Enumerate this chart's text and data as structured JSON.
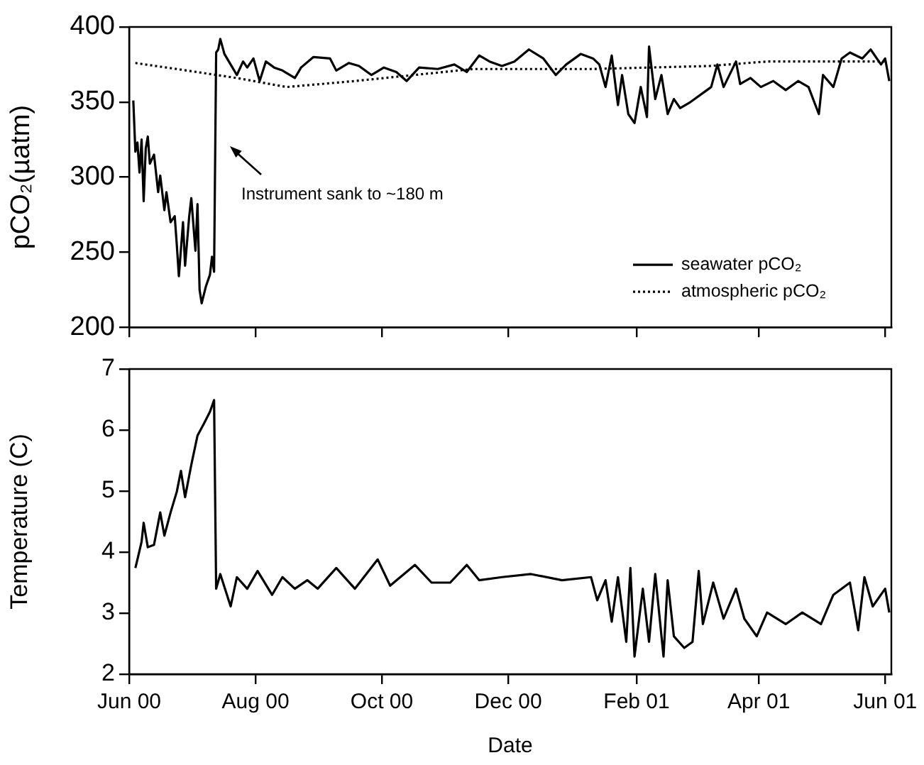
{
  "chart_data": [
    {
      "type": "line",
      "ylabel": "pCO₂(µatm)",
      "xlim": [
        "2000-06-01",
        "2001-06-04"
      ],
      "ylim": [
        200,
        400
      ],
      "yticks": [
        200,
        250,
        300,
        350,
        400
      ],
      "xticks": [
        {
          "value": "2000-06-01",
          "label": null
        },
        {
          "value": "2000-08-01",
          "label": null
        },
        {
          "value": "2000-10-01",
          "label": null
        },
        {
          "value": "2000-12-01",
          "label": null
        },
        {
          "value": "2001-02-01",
          "label": null
        },
        {
          "value": "2001-04-01",
          "label": null
        },
        {
          "value": "2001-06-01",
          "label": null
        }
      ],
      "tick_labels": "y",
      "legend": "bottom right",
      "marker": "none",
      "annotations": [
        "Instrument sank to ~180 m"
      ],
      "series": [
        {
          "name": "seawater pCO₂",
          "color": "#000000",
          "line_style": "solid",
          "x": [
            "2000-06-03",
            "2000-06-04",
            "2000-06-05",
            "2000-06-06",
            "2000-06-07",
            "2000-06-08",
            "2000-06-09",
            "2000-06-10",
            "2000-06-11",
            "2000-06-13",
            "2000-06-15",
            "2000-06-16",
            "2000-06-18",
            "2000-06-19",
            "2000-06-21",
            "2000-06-23",
            "2000-06-24",
            "2000-06-25",
            "2000-06-27",
            "2000-06-28",
            "2000-06-30",
            "2000-07-01",
            "2000-07-03",
            "2000-07-04",
            "2000-07-05",
            "2000-07-06",
            "2000-07-08",
            "2000-07-10",
            "2000-07-11",
            "2000-07-12",
            "2000-07-13",
            "2000-07-14",
            "2000-07-15",
            "2000-07-17",
            "2000-07-20",
            "2000-07-23",
            "2000-07-26",
            "2000-07-28",
            "2000-07-31",
            "2000-08-03",
            "2000-08-06",
            "2000-08-10",
            "2000-08-14",
            "2000-08-20",
            "2000-08-23",
            "2000-08-29",
            "2000-09-06",
            "2000-09-09",
            "2000-09-15",
            "2000-09-20",
            "2000-09-26",
            "2000-10-02",
            "2000-10-08",
            "2000-10-13",
            "2000-10-19",
            "2000-10-28",
            "2000-11-05",
            "2000-11-11",
            "2000-11-17",
            "2000-11-22",
            "2000-11-28",
            "2000-12-04",
            "2000-12-11",
            "2000-12-18",
            "2000-12-24",
            "2000-12-29",
            "2001-01-05",
            "2001-01-11",
            "2001-01-14",
            "2001-01-17",
            "2001-01-20",
            "2001-01-23",
            "2001-01-25",
            "2001-01-28",
            "2001-01-31",
            "2001-02-03",
            "2001-02-06",
            "2001-02-07",
            "2001-02-10",
            "2001-02-13",
            "2001-02-16",
            "2001-02-19",
            "2001-02-22",
            "2001-02-27",
            "2001-03-05",
            "2001-03-09",
            "2001-03-12",
            "2001-03-15",
            "2001-03-21",
            "2001-03-23",
            "2001-03-28",
            "2001-04-02",
            "2001-04-08",
            "2001-04-14",
            "2001-04-20",
            "2001-04-25",
            "2001-04-30",
            "2001-05-02",
            "2001-05-07",
            "2001-05-11",
            "2001-05-15",
            "2001-05-21",
            "2001-05-25",
            "2001-05-30",
            "2001-06-01",
            "2001-06-03"
          ],
          "values": [
            351,
            317,
            323,
            303,
            325,
            284,
            319,
            327,
            309,
            315,
            290,
            301,
            278,
            290,
            270,
            274,
            255,
            234,
            270,
            241,
            274,
            286,
            251,
            282,
            225,
            216,
            227,
            235,
            247,
            237,
            383,
            385,
            392,
            382,
            375,
            368,
            377,
            373,
            379,
            364,
            377,
            373,
            371,
            366,
            373,
            380,
            379,
            371,
            376,
            374,
            368,
            373,
            370,
            364,
            373,
            372,
            375,
            370,
            381,
            377,
            374,
            377,
            385,
            379,
            368,
            375,
            382,
            379,
            375,
            360,
            381,
            348,
            368,
            342,
            336,
            360,
            340,
            387,
            352,
            368,
            342,
            352,
            346,
            350,
            356,
            360,
            375,
            360,
            377,
            362,
            366,
            360,
            364,
            358,
            364,
            360,
            342,
            368,
            360,
            379,
            383,
            379,
            385,
            375,
            379,
            364
          ]
        },
        {
          "name": "atmospheric pCO₂",
          "color": "#000000",
          "line_style": "dotted",
          "x": [
            "2000-06-04",
            "2000-06-24",
            "2000-07-23",
            "2000-08-16",
            "2000-09-18",
            "2000-11-14",
            "2001-01-10",
            "2001-03-08",
            "2001-04-05",
            "2001-06-01"
          ],
          "values": [
            376,
            372,
            366,
            360,
            364,
            372,
            372,
            374,
            377,
            377
          ]
        }
      ]
    },
    {
      "type": "line",
      "xlabel": "Date",
      "ylabel": "Temperature (C)",
      "xlim": [
        "2000-06-01",
        "2001-06-04"
      ],
      "ylim": [
        2,
        7
      ],
      "yticks": [
        2,
        3,
        4,
        5,
        6,
        7
      ],
      "xticks": [
        {
          "value": "2000-06-01",
          "label": "Jun 00"
        },
        {
          "value": "2000-08-01",
          "label": "Aug 00"
        },
        {
          "value": "2000-10-01",
          "label": "Oct 00"
        },
        {
          "value": "2000-12-01",
          "label": "Dec 00"
        },
        {
          "value": "2001-02-01",
          "label": "Feb 01"
        },
        {
          "value": "2001-04-01",
          "label": "Apr 01"
        },
        {
          "value": "2001-06-01",
          "label": "Jun 01"
        }
      ],
      "marker": "none",
      "series": [
        {
          "color": "#000000",
          "line_style": "solid",
          "x": [
            "2000-06-04",
            "2000-06-05",
            "2000-06-07",
            "2000-06-08",
            "2000-06-10",
            "2000-06-13",
            "2000-06-16",
            "2000-06-18",
            "2000-06-21",
            "2000-06-24",
            "2000-06-26",
            "2000-06-28",
            "2000-07-01",
            "2000-07-04",
            "2000-07-07",
            "2000-07-10",
            "2000-07-12",
            "2000-07-13",
            "2000-07-15",
            "2000-07-20",
            "2000-07-23",
            "2000-07-28",
            "2000-08-02",
            "2000-08-09",
            "2000-08-14",
            "2000-08-20",
            "2000-08-26",
            "2000-08-31",
            "2000-09-09",
            "2000-09-18",
            "2000-09-29",
            "2000-10-05",
            "2000-10-17",
            "2000-10-25",
            "2000-11-03",
            "2000-11-11",
            "2000-11-17",
            "2000-11-28",
            "2000-12-12",
            "2000-12-27",
            "2001-01-10",
            "2001-01-13",
            "2001-01-17",
            "2001-01-20",
            "2001-01-23",
            "2001-01-27",
            "2001-01-29",
            "2001-01-31",
            "2001-02-04",
            "2001-02-07",
            "2001-02-10",
            "2001-02-14",
            "2001-02-16",
            "2001-02-19",
            "2001-02-24",
            "2001-02-28",
            "2001-03-03",
            "2001-03-05",
            "2001-03-10",
            "2001-03-15",
            "2001-03-21",
            "2001-03-25",
            "2001-03-31",
            "2001-04-05",
            "2001-04-14",
            "2001-04-22",
            "2001-05-01",
            "2001-05-07",
            "2001-05-15",
            "2001-05-19",
            "2001-05-22",
            "2001-05-26",
            "2001-06-01",
            "2001-06-03"
          ],
          "values": [
            3.74,
            3.88,
            4.17,
            4.48,
            4.08,
            4.12,
            4.65,
            4.27,
            4.65,
            4.99,
            5.33,
            4.9,
            5.43,
            5.91,
            6.1,
            6.3,
            6.49,
            3.4,
            3.64,
            3.11,
            3.59,
            3.4,
            3.69,
            3.3,
            3.59,
            3.4,
            3.54,
            3.4,
            3.74,
            3.4,
            3.88,
            3.45,
            3.79,
            3.5,
            3.5,
            3.79,
            3.54,
            3.59,
            3.64,
            3.54,
            3.59,
            3.21,
            3.54,
            2.86,
            3.59,
            2.53,
            3.74,
            2.29,
            3.4,
            2.53,
            3.64,
            2.29,
            3.54,
            2.62,
            2.43,
            2.53,
            3.69,
            2.82,
            3.5,
            2.91,
            3.4,
            2.91,
            2.62,
            3.01,
            2.82,
            3.01,
            2.82,
            3.3,
            3.5,
            2.72,
            3.59,
            3.11,
            3.4,
            3.01
          ]
        }
      ]
    }
  ]
}
